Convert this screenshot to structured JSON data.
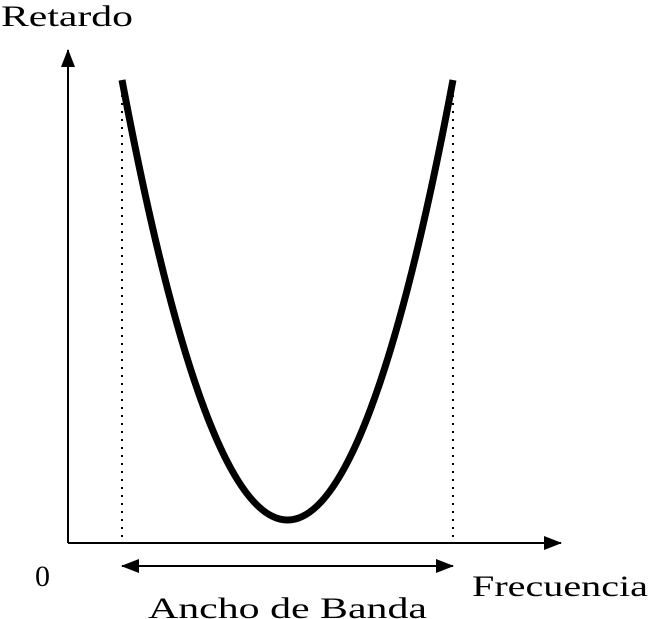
{
  "axes": {
    "y_label": "Retardo",
    "origin": "0",
    "x_label": "Frecuencia"
  },
  "bandwidth_label": "Ancho de Banda"
}
